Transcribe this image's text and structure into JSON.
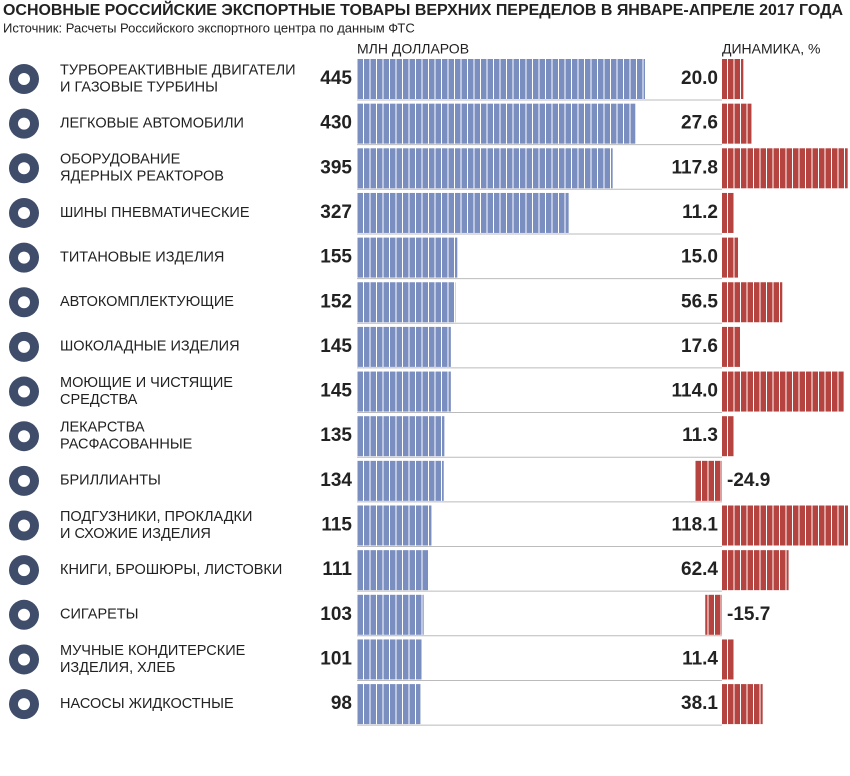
{
  "chart_data": {
    "type": "bar",
    "title": "ОСНОВНЫЕ РОССИЙСКИЕ ЭКСПОРТНЫЕ ТОВАРЫ ВЕРХНИХ ПЕРЕДЕЛОВ В ЯНВАРЕ-АПРЕЛЕ 2017 ГОДА",
    "subtitle": "Источник: Расчеты Российского экспортного центра по данным ФТС",
    "categories": [
      [
        "ТУРБОРЕАКТИВНЫЕ ДВИГАТЕЛИ",
        "И ГАЗОВЫЕ ТУРБИНЫ"
      ],
      [
        "ЛЕГКОВЫЕ АВТОМОБИЛИ"
      ],
      [
        "ОБОРУДОВАНИЕ",
        "ЯДЕРНЫХ РЕАКТОРОВ"
      ],
      [
        "ШИНЫ ПНЕВМАТИЧЕСКИЕ"
      ],
      [
        "ТИТАНОВЫЕ ИЗДЕЛИЯ"
      ],
      [
        "АВТОКОМПЛЕКТУЮЩИЕ"
      ],
      [
        "ШОКОЛАДНЫЕ ИЗДЕЛИЯ"
      ],
      [
        "МОЮЩИЕ И ЧИСТЯЩИЕ",
        "СРЕДСТВА"
      ],
      [
        "ЛЕКАРСТВА",
        "РАСФАСОВАННЫЕ"
      ],
      [
        "БРИЛЛИАНТЫ"
      ],
      [
        "ПОДГУЗНИКИ, ПРОКЛАДКИ",
        "И СХОЖИЕ ИЗДЕЛИЯ"
      ],
      [
        "КНИГИ, БРОШЮРЫ, ЛИСТОВКИ"
      ],
      [
        "СИГАРЕТЫ"
      ],
      [
        "МУЧНЫЕ КОНДИТЕРСКИЕ",
        "ИЗДЕЛИЯ, ХЛЕБ"
      ],
      [
        "НАСОСЫ ЖИДКОСТНЫЕ"
      ]
    ],
    "series": [
      {
        "name": "МЛН ДОЛЛАРОВ",
        "color": "#7b8ec0",
        "values": [
          445,
          430,
          395,
          327,
          155,
          152,
          145,
          145,
          135,
          134,
          115,
          111,
          103,
          101,
          98
        ]
      },
      {
        "name": "ДИНАМИКА, %",
        "color": "#b5433f",
        "values": [
          20.0,
          27.6,
          117.8,
          11.2,
          15.0,
          56.5,
          17.6,
          114.0,
          11.3,
          -24.9,
          118.1,
          62.4,
          -15.7,
          11.4,
          38.1
        ],
        "value_labels": [
          "20.0",
          "27.6",
          "117.8",
          "11.2",
          "15.0",
          "56.5",
          "17.6",
          "114.0",
          "11.3",
          "-24.9",
          "118.1",
          "62.4",
          "-15.7",
          "11.4",
          "38.1"
        ]
      }
    ]
  }
}
